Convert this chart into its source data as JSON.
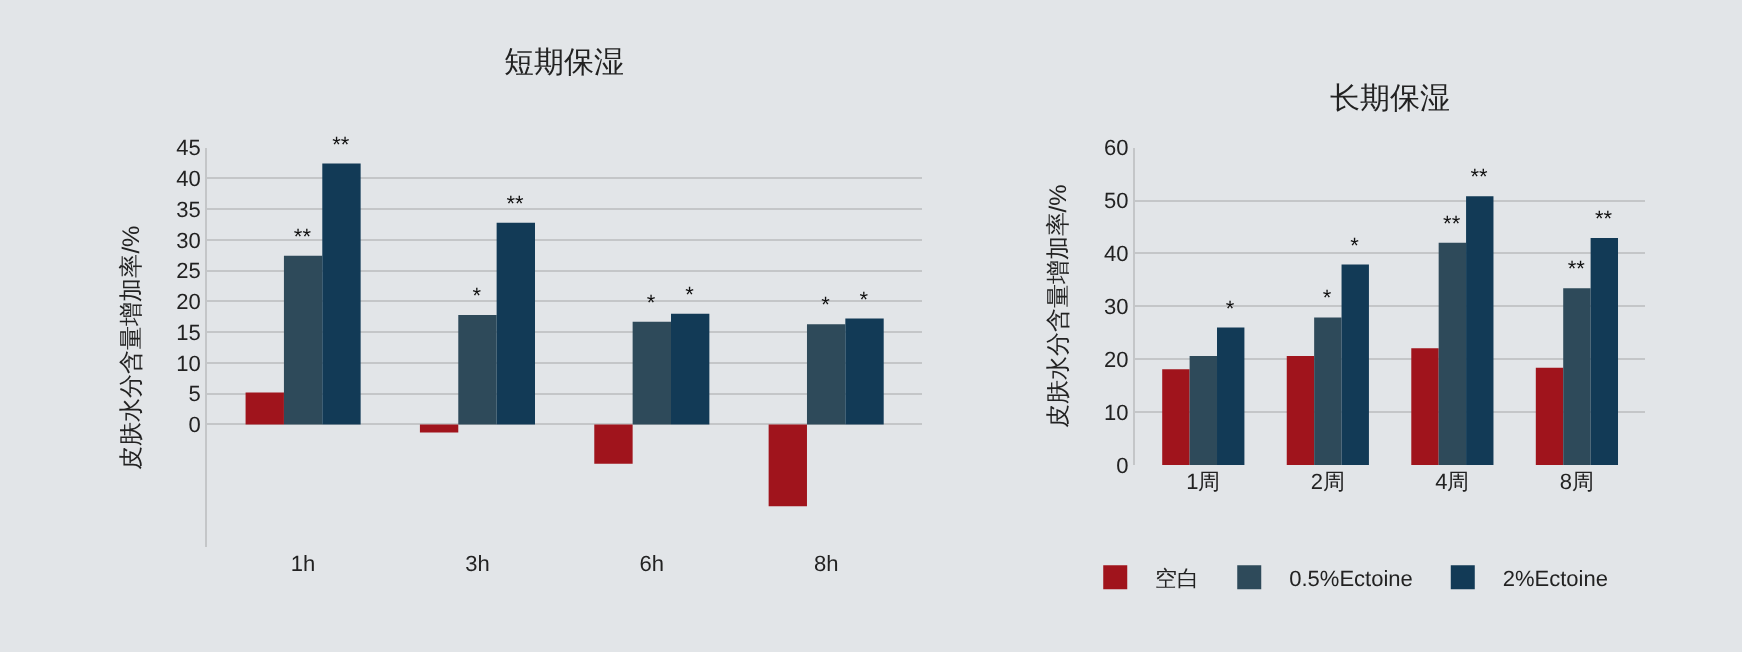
{
  "chart_data": [
    {
      "type": "bar",
      "title": "短期保湿",
      "ylabel": "皮肤水分含量增加率/%",
      "categories": [
        "1h",
        "3h",
        "6h",
        "8h"
      ],
      "series": [
        {
          "color": "#a0141c",
          "values": [
            5.2,
            -1.3,
            -6.4,
            -13.3
          ]
        },
        {
          "color": "#2e4a5a",
          "values": [
            27.4,
            17.8,
            16.7,
            16.3
          ],
          "value_labels": [
            "**",
            "*",
            "*",
            "*"
          ]
        },
        {
          "color": "#123a56",
          "values": [
            42.4,
            32.8,
            18.0,
            17.2
          ],
          "value_labels": [
            "**",
            "**",
            "*",
            "*"
          ]
        }
      ],
      "ylim": [
        -20,
        45
      ],
      "yticks": [
        0,
        5,
        10,
        15,
        20,
        25,
        30,
        35,
        40,
        45
      ],
      "grid": "y",
      "legend": false
    },
    {
      "type": "bar",
      "title": "长期保湿",
      "ylabel": "皮肤水分含量增加率/%",
      "categories": [
        "1周",
        "2周",
        "4周",
        "8周"
      ],
      "series": [
        {
          "name": "空白",
          "color": "#a0141c",
          "values": [
            18.1,
            20.6,
            22.1,
            18.4
          ]
        },
        {
          "name": "0.5%Ectoine",
          "color": "#2e4a5a",
          "values": [
            20.6,
            27.9,
            42.0,
            33.4
          ],
          "value_labels": [
            null,
            "*",
            "**",
            "**"
          ]
        },
        {
          "name": "2%Ectoine",
          "color": "#123a56",
          "values": [
            26.0,
            37.9,
            50.8,
            42.9
          ],
          "value_labels": [
            "*",
            "*",
            "**",
            "**"
          ]
        }
      ],
      "ylim": [
        0,
        60
      ],
      "yticks": [
        0,
        10,
        20,
        30,
        40,
        50,
        60
      ],
      "grid": "y",
      "legend": "bottom"
    }
  ]
}
